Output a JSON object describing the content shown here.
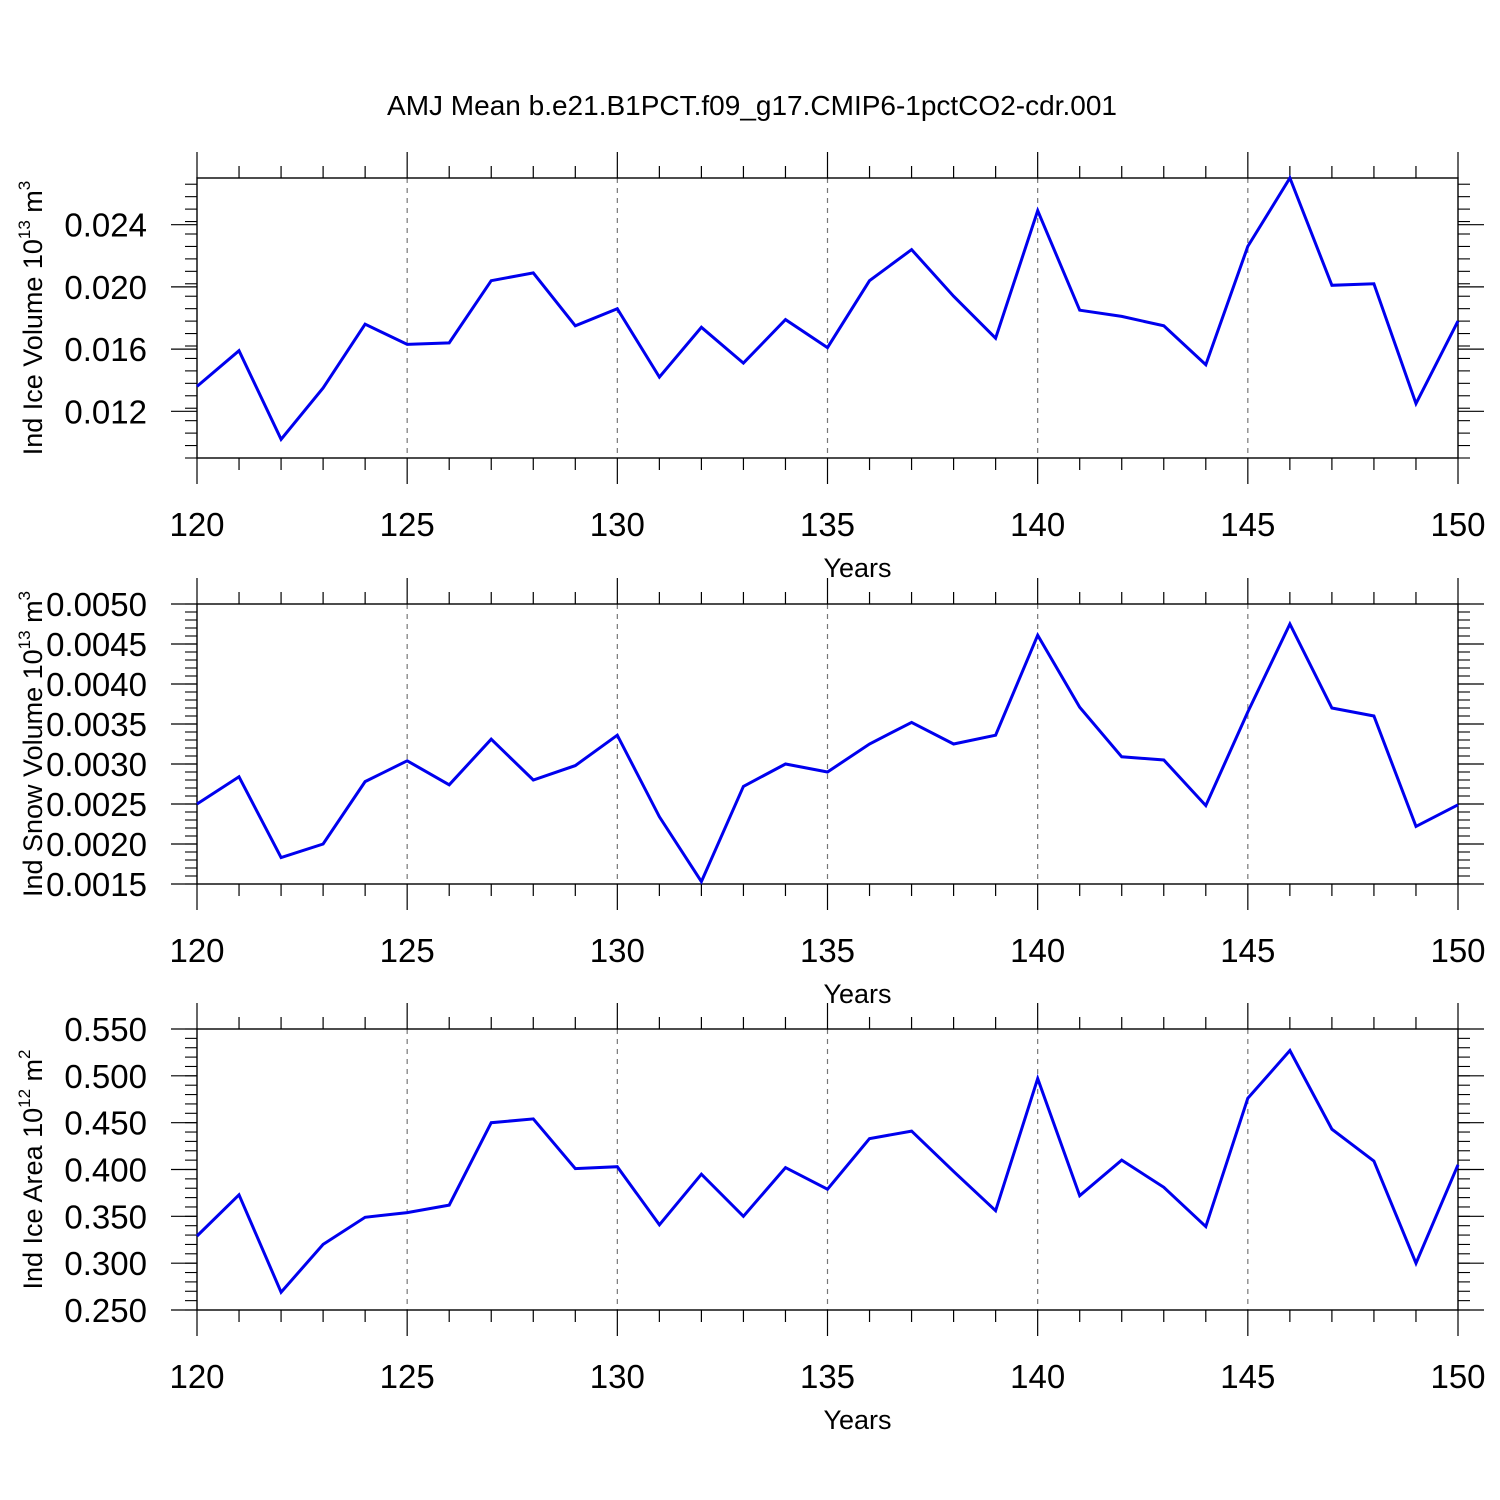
{
  "title": "AMJ Mean b.e21.B1PCT.f09_g17.CMIP6-1pctCO2-cdr.001",
  "line_color": "#0000ee",
  "chart_data": [
    {
      "type": "line",
      "title": "",
      "xlabel": "Years",
      "ylabel": {
        "base": "Ind Ice Volume 10",
        "exp": "13",
        "unit": " m",
        "unit_exp": "3"
      },
      "xlim": [
        120,
        150
      ],
      "ylim": [
        0.009,
        0.027
      ],
      "x_major_ticks": [
        120,
        125,
        130,
        135,
        140,
        145,
        150
      ],
      "x_tick_labels": [
        "120",
        "125",
        "130",
        "135",
        "140",
        "145",
        "150"
      ],
      "y_major_ticks": [
        0.012,
        0.016,
        0.02,
        0.024
      ],
      "y_tick_labels": [
        "0.012",
        "0.016",
        "0.020",
        "0.024"
      ],
      "y_minor_step": 0.0008,
      "grid": "vertical dashed at major x ticks",
      "x": [
        120,
        121,
        122,
        123,
        124,
        125,
        126,
        127,
        128,
        129,
        130,
        131,
        132,
        133,
        134,
        135,
        136,
        137,
        138,
        139,
        140,
        141,
        142,
        143,
        144,
        145,
        146,
        147,
        148,
        149,
        150
      ],
      "series": [
        {
          "values": [
            0.0136,
            0.0159,
            0.0102,
            0.0135,
            0.0176,
            0.0163,
            0.0164,
            0.0204,
            0.0209,
            0.0175,
            0.0186,
            0.0142,
            0.0174,
            0.0151,
            0.0179,
            0.0161,
            0.0204,
            0.0224,
            0.0194,
            0.0167,
            0.0249,
            0.0185,
            0.0181,
            0.0175,
            0.015,
            0.0226,
            0.027,
            0.0201,
            0.0202,
            0.0125,
            0.0178
          ]
        }
      ]
    },
    {
      "type": "line",
      "title": "",
      "xlabel": "Years",
      "ylabel": {
        "base": "Ind Snow Volume 10",
        "exp": "13",
        "unit": " m",
        "unit_exp": "3"
      },
      "xlim": [
        120,
        150
      ],
      "ylim": [
        0.0015,
        0.005
      ],
      "x_major_ticks": [
        120,
        125,
        130,
        135,
        140,
        145,
        150
      ],
      "x_tick_labels": [
        "120",
        "125",
        "130",
        "135",
        "140",
        "145",
        "150"
      ],
      "y_major_ticks": [
        0.0015,
        0.002,
        0.0025,
        0.003,
        0.0035,
        0.004,
        0.0045,
        0.005
      ],
      "y_tick_labels": [
        "0.0015",
        "0.0020",
        "0.0025",
        "0.0030",
        "0.0035",
        "0.0040",
        "0.0045",
        "0.0050"
      ],
      "y_minor_step": 0.0001,
      "grid": "vertical dashed at major x ticks",
      "x": [
        120,
        121,
        122,
        123,
        124,
        125,
        126,
        127,
        128,
        129,
        130,
        131,
        132,
        133,
        134,
        135,
        136,
        137,
        138,
        139,
        140,
        141,
        142,
        143,
        144,
        145,
        146,
        147,
        148,
        149,
        150
      ],
      "series": [
        {
          "values": [
            0.0025,
            0.00284,
            0.00183,
            0.002,
            0.00278,
            0.00304,
            0.00274,
            0.00331,
            0.0028,
            0.00298,
            0.00336,
            0.00234,
            0.00153,
            0.00272,
            0.003,
            0.0029,
            0.00325,
            0.00352,
            0.00325,
            0.00336,
            0.00461,
            0.00371,
            0.00309,
            0.00305,
            0.00248,
            0.00365,
            0.00475,
            0.0037,
            0.0036,
            0.00222,
            0.00249
          ]
        }
      ]
    },
    {
      "type": "line",
      "title": "",
      "xlabel": "Years",
      "ylabel": {
        "base": "Ind Ice Area 10",
        "exp": "12",
        "unit": " m",
        "unit_exp": "2"
      },
      "xlim": [
        120,
        150
      ],
      "ylim": [
        0.25,
        0.55
      ],
      "x_major_ticks": [
        120,
        125,
        130,
        135,
        140,
        145,
        150
      ],
      "x_tick_labels": [
        "120",
        "125",
        "130",
        "135",
        "140",
        "145",
        "150"
      ],
      "y_major_ticks": [
        0.25,
        0.3,
        0.35,
        0.4,
        0.45,
        0.5,
        0.55
      ],
      "y_tick_labels": [
        "0.250",
        "0.300",
        "0.350",
        "0.400",
        "0.450",
        "0.500",
        "0.550"
      ],
      "y_minor_step": 0.01,
      "grid": "vertical dashed at major x ticks",
      "x": [
        120,
        121,
        122,
        123,
        124,
        125,
        126,
        127,
        128,
        129,
        130,
        131,
        132,
        133,
        134,
        135,
        136,
        137,
        138,
        139,
        140,
        141,
        142,
        143,
        144,
        145,
        146,
        147,
        148,
        149,
        150
      ],
      "series": [
        {
          "values": [
            0.329,
            0.373,
            0.269,
            0.32,
            0.349,
            0.354,
            0.362,
            0.45,
            0.454,
            0.401,
            0.403,
            0.341,
            0.395,
            0.35,
            0.402,
            0.379,
            0.433,
            0.441,
            0.398,
            0.356,
            0.497,
            0.372,
            0.41,
            0.381,
            0.339,
            0.476,
            0.527,
            0.443,
            0.409,
            0.3,
            0.405
          ]
        }
      ]
    }
  ]
}
